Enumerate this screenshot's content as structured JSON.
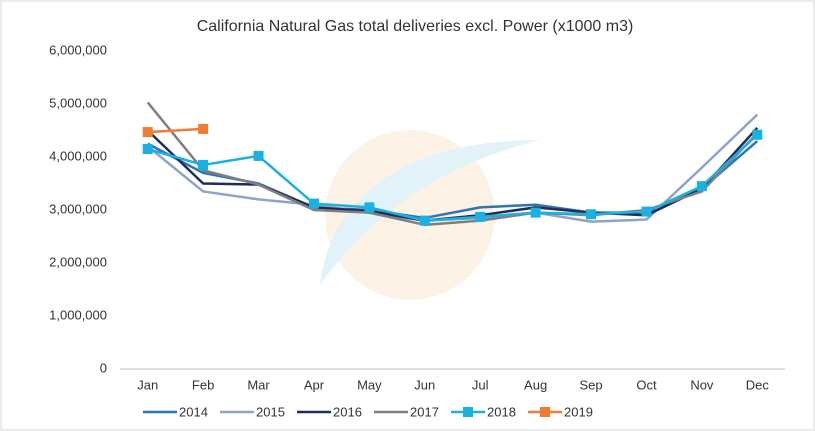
{
  "chart_data": {
    "type": "line",
    "title": "California Natural Gas total deliveries excl. Power (x1000 m3)",
    "categories": [
      "Jan",
      "Feb",
      "Mar",
      "Apr",
      "May",
      "Jun",
      "Jul",
      "Aug",
      "Sep",
      "Oct",
      "Nov",
      "Dec"
    ],
    "ylim": [
      0,
      6000000
    ],
    "yticks": [
      0,
      {
        "value": 1000000,
        "label": "1,000,000"
      },
      {
        "value": 2000000,
        "label": "2,000,000"
      },
      {
        "value": 3000000,
        "label": "3,000,000"
      },
      {
        "value": 4000000,
        "label": "4,000,000"
      },
      {
        "value": 5000000,
        "label": "5,000,000"
      },
      {
        "value": 6000000,
        "label": "6,000,000"
      }
    ],
    "grid": false,
    "legend": "bottom",
    "series": [
      {
        "name": "2014",
        "color": "#2e75b6",
        "values": [
          4250000,
          3700000,
          3500000,
          3050000,
          3000000,
          2850000,
          3050000,
          3100000,
          2950000,
          2950000,
          3400000,
          4300000
        ]
      },
      {
        "name": "2015",
        "color": "#8fa4c4",
        "values": [
          4200000,
          3350000,
          3200000,
          3100000,
          2950000,
          2800000,
          2850000,
          2950000,
          2780000,
          2820000,
          3800000,
          4800000
        ]
      },
      {
        "name": "2016",
        "color": "#1f2d5c",
        "values": [
          4500000,
          3500000,
          3480000,
          3050000,
          2980000,
          2800000,
          2900000,
          3050000,
          2950000,
          2900000,
          3400000,
          4550000
        ]
      },
      {
        "name": "2017",
        "color": "#7f7f7f",
        "values": [
          5030000,
          3750000,
          3480000,
          3000000,
          2950000,
          2720000,
          2800000,
          2950000,
          2900000,
          3000000,
          3350000,
          4450000
        ]
      },
      {
        "name": "2018",
        "color": "#1ab0e0",
        "marker": "square",
        "values": [
          4150000,
          3850000,
          4020000,
          3120000,
          3050000,
          2800000,
          2870000,
          2950000,
          2920000,
          2970000,
          3450000,
          4420000
        ]
      },
      {
        "name": "2019",
        "color": "#ed7d31",
        "marker": "square",
        "values": [
          4470000,
          4530000,
          null,
          null,
          null,
          null,
          null,
          null,
          null,
          null,
          null,
          null
        ]
      }
    ]
  }
}
